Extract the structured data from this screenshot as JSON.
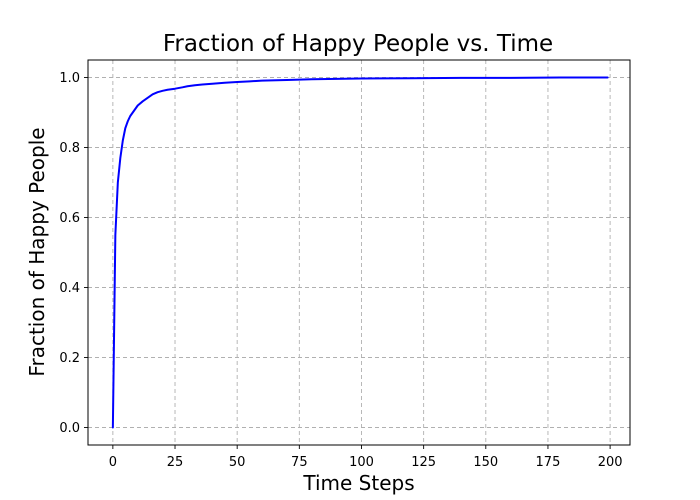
{
  "chart_data": {
    "type": "line",
    "title": "Fraction of Happy People vs. Time",
    "xlabel": "Time Steps",
    "ylabel": "Fraction of Happy People",
    "xlim": [
      -10,
      208
    ],
    "ylim": [
      -0.05,
      1.05
    ],
    "xticks": [
      0,
      25,
      50,
      75,
      100,
      125,
      150,
      175,
      200
    ],
    "xtick_labels": [
      "0",
      "25",
      "50",
      "75",
      "100",
      "125",
      "150",
      "175",
      "200"
    ],
    "yticks": [
      0.0,
      0.2,
      0.4,
      0.6,
      0.8,
      1.0
    ],
    "ytick_labels": [
      "0.0",
      "0.2",
      "0.4",
      "0.6",
      "0.8",
      "1.0"
    ],
    "grid": true,
    "legend": null,
    "series": [
      {
        "color": "#0000ff",
        "x": [
          0,
          1,
          2,
          3,
          4,
          5,
          6,
          7,
          8,
          9,
          10,
          12,
          14,
          16,
          18,
          20,
          22,
          25,
          28,
          30,
          33,
          36,
          40,
          45,
          50,
          55,
          60,
          70,
          80,
          90,
          100,
          120,
          140,
          160,
          180,
          199
        ],
        "y": [
          0.0,
          0.55,
          0.7,
          0.77,
          0.82,
          0.855,
          0.875,
          0.89,
          0.9,
          0.91,
          0.92,
          0.932,
          0.942,
          0.952,
          0.958,
          0.962,
          0.965,
          0.968,
          0.972,
          0.975,
          0.978,
          0.98,
          0.982,
          0.985,
          0.987,
          0.989,
          0.991,
          0.993,
          0.995,
          0.996,
          0.997,
          0.998,
          0.999,
          0.999,
          1.0,
          1.0
        ]
      }
    ]
  }
}
